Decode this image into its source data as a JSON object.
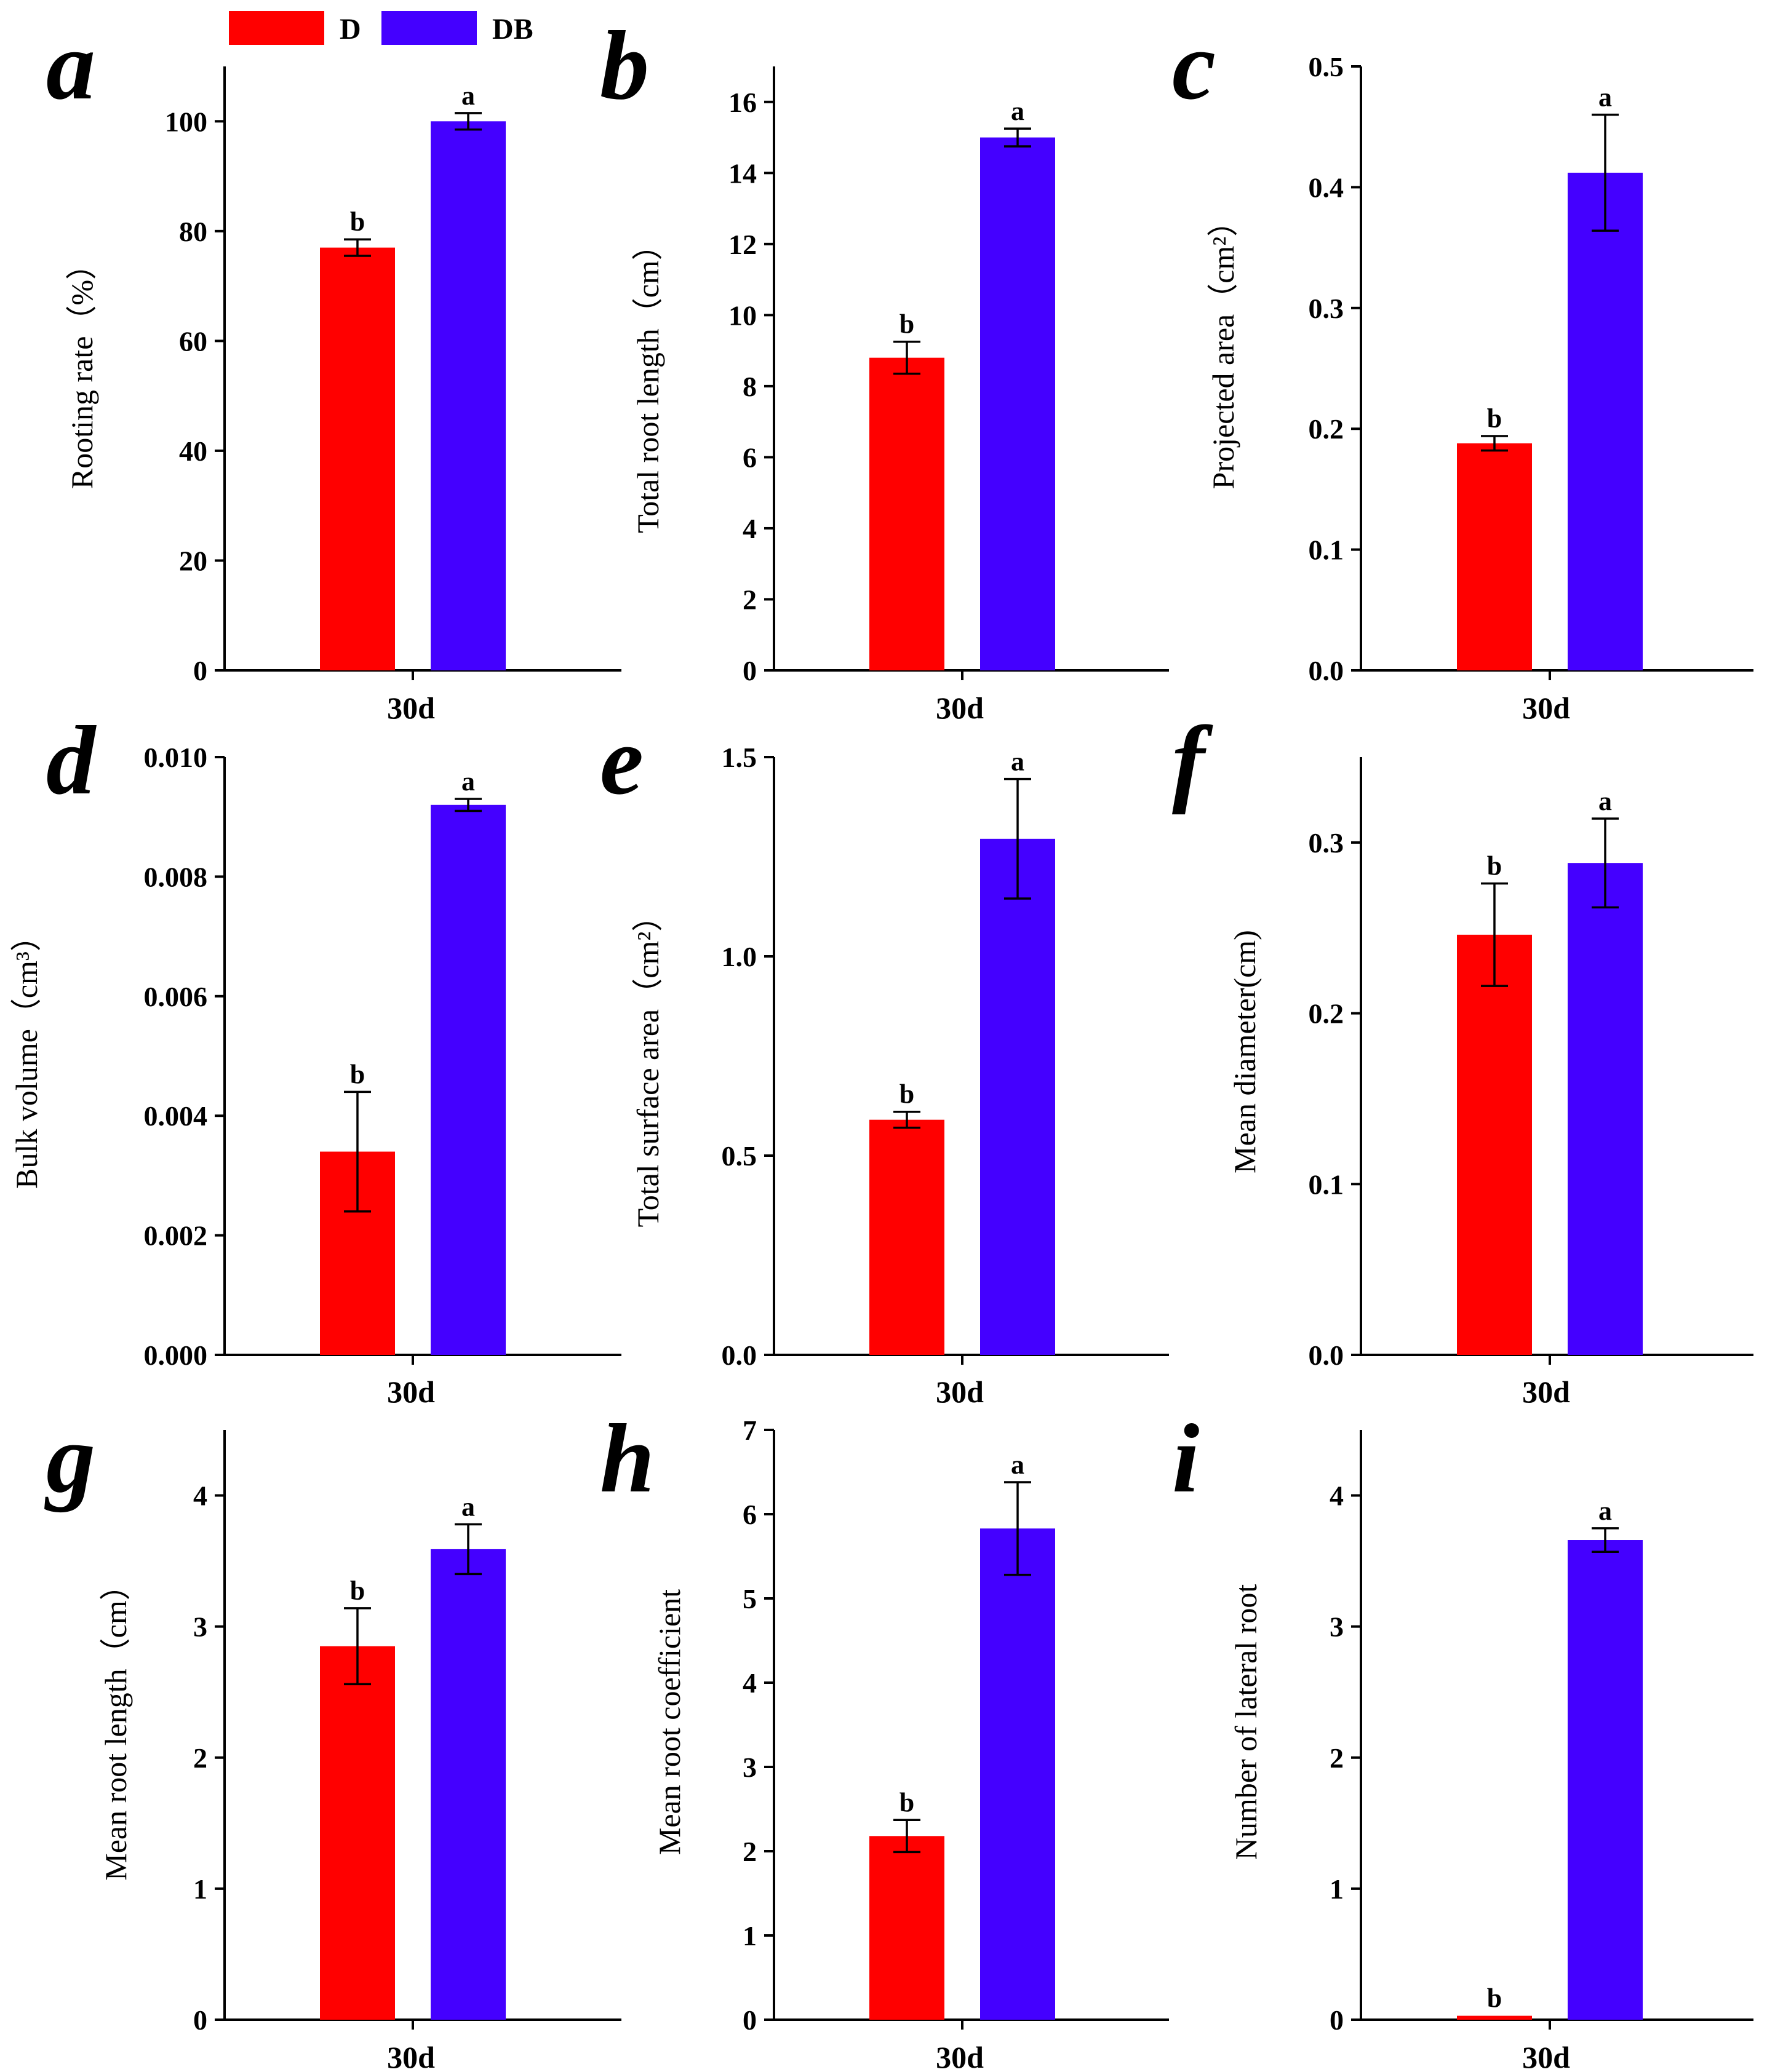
{
  "legend": {
    "items": [
      {
        "label": "D",
        "color": "#ff0000"
      },
      {
        "label": "DB",
        "color": "#4400ff"
      }
    ]
  },
  "chart_data": [
    {
      "panel": "a",
      "type": "bar",
      "ylabel": "Rooting rate（%）",
      "category": "30d",
      "ylim": [
        0,
        110
      ],
      "yticks": [
        0,
        20,
        40,
        60,
        80,
        100
      ],
      "tick_decimals": 0,
      "series": [
        {
          "name": "D",
          "value": 77,
          "err": 1.5,
          "sig": "b"
        },
        {
          "name": "DB",
          "value": 100,
          "err": 1.5,
          "sig": "a"
        }
      ]
    },
    {
      "panel": "b",
      "type": "bar",
      "ylabel": "Total root length（cm）",
      "category": "30d",
      "ylim": [
        0,
        17
      ],
      "yticks": [
        0,
        2,
        4,
        6,
        8,
        10,
        12,
        14,
        16
      ],
      "tick_decimals": 0,
      "series": [
        {
          "name": "D",
          "value": 8.8,
          "err": 0.45,
          "sig": "b"
        },
        {
          "name": "DB",
          "value": 15.0,
          "err": 0.25,
          "sig": "a"
        }
      ]
    },
    {
      "panel": "c",
      "type": "bar",
      "ylabel": "Projected area（cm²）",
      "category": "30d",
      "ylim": [
        0,
        0.5
      ],
      "yticks": [
        0.0,
        0.1,
        0.2,
        0.3,
        0.4,
        0.5
      ],
      "tick_decimals": 1,
      "series": [
        {
          "name": "D",
          "value": 0.188,
          "err": 0.006,
          "sig": "b"
        },
        {
          "name": "DB",
          "value": 0.412,
          "err": 0.048,
          "sig": "a"
        }
      ]
    },
    {
      "panel": "d",
      "type": "bar",
      "ylabel": "Bulk volume（cm³）",
      "category": "30d",
      "ylim": [
        0,
        0.01
      ],
      "yticks": [
        0.0,
        0.002,
        0.004,
        0.006,
        0.008,
        0.01
      ],
      "tick_decimals": 3,
      "series": [
        {
          "name": "D",
          "value": 0.0034,
          "err": 0.001,
          "sig": "b"
        },
        {
          "name": "DB",
          "value": 0.0092,
          "err": 0.0001,
          "sig": "a"
        }
      ]
    },
    {
      "panel": "e",
      "type": "bar",
      "ylabel": "Total surface area（cm²）",
      "category": "30d",
      "ylim": [
        0,
        1.5
      ],
      "yticks": [
        0.0,
        0.5,
        1.0,
        1.5
      ],
      "tick_decimals": 1,
      "series": [
        {
          "name": "D",
          "value": 0.59,
          "err": 0.02,
          "sig": "b"
        },
        {
          "name": "DB",
          "value": 1.295,
          "err": 0.15,
          "sig": "a"
        }
      ]
    },
    {
      "panel": "f",
      "type": "bar",
      "ylabel": "Mean diameter(cm)",
      "category": "30d",
      "ylim": [
        0,
        0.35
      ],
      "yticks": [
        0.0,
        0.1,
        0.2,
        0.3
      ],
      "tick_decimals": 1,
      "series": [
        {
          "name": "D",
          "value": 0.246,
          "err": 0.03,
          "sig": "b"
        },
        {
          "name": "DB",
          "value": 0.288,
          "err": 0.026,
          "sig": "a"
        }
      ]
    },
    {
      "panel": "g",
      "type": "bar",
      "ylabel": "Mean root length（cm）",
      "category": "30d",
      "ylim": [
        0,
        4.5
      ],
      "yticks": [
        0,
        1,
        2,
        3,
        4
      ],
      "tick_decimals": 0,
      "series": [
        {
          "name": "D",
          "value": 2.85,
          "err": 0.29,
          "sig": "b"
        },
        {
          "name": "DB",
          "value": 3.59,
          "err": 0.19,
          "sig": "a"
        }
      ]
    },
    {
      "panel": "h",
      "type": "bar",
      "ylabel": "Mean root coefficient",
      "category": "30d",
      "ylim": [
        0,
        7
      ],
      "yticks": [
        0,
        1,
        2,
        3,
        4,
        5,
        6,
        7
      ],
      "tick_decimals": 0,
      "series": [
        {
          "name": "D",
          "value": 2.18,
          "err": 0.19,
          "sig": "b"
        },
        {
          "name": "DB",
          "value": 5.83,
          "err": 0.55,
          "sig": "a"
        }
      ]
    },
    {
      "panel": "i",
      "type": "bar",
      "ylabel": "Number of lateral root",
      "category": "30d",
      "ylim": [
        0,
        4.5
      ],
      "yticks": [
        0,
        1,
        2,
        3,
        4
      ],
      "tick_decimals": 0,
      "series": [
        {
          "name": "D",
          "value": 0.03,
          "err": 0.0,
          "sig": "b"
        },
        {
          "name": "DB",
          "value": 3.66,
          "err": 0.09,
          "sig": "a"
        }
      ]
    }
  ]
}
